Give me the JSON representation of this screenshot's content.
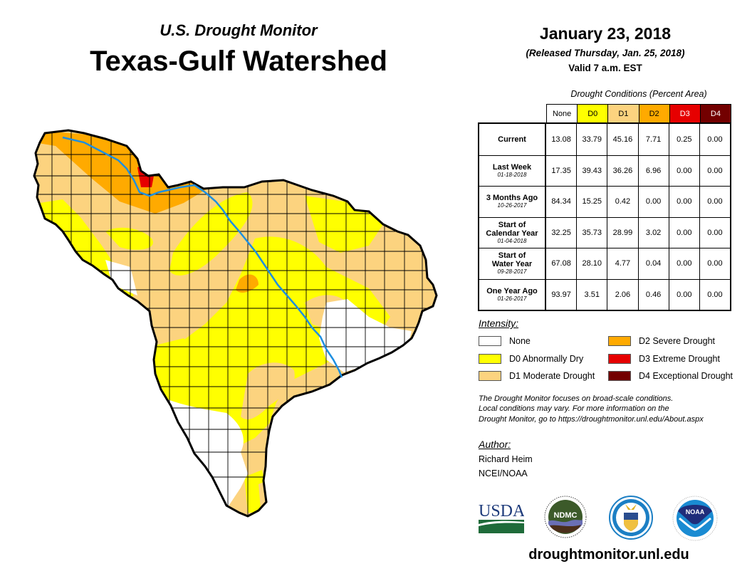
{
  "header": {
    "subtitle": "U.S. Drought Monitor",
    "title": "Texas-Gulf Watershed",
    "date": "January 23, 2018",
    "released": "(Released Thursday, Jan. 25, 2018)",
    "valid": "Valid 7 a.m. EST"
  },
  "table": {
    "caption": "Drought Conditions (Percent Area)",
    "columns": [
      {
        "label": "None",
        "color": "#ffffff",
        "text_color": "#000000"
      },
      {
        "label": "D0",
        "color": "#ffff00",
        "text_color": "#000000"
      },
      {
        "label": "D1",
        "color": "#fcd37f",
        "text_color": "#000000"
      },
      {
        "label": "D2",
        "color": "#ffaa00",
        "text_color": "#000000"
      },
      {
        "label": "D3",
        "color": "#e60000",
        "text_color": "#ffffff"
      },
      {
        "label": "D4",
        "color": "#730000",
        "text_color": "#ffffff"
      }
    ],
    "rows": [
      {
        "label": "Current",
        "label2": "",
        "date": "",
        "values": [
          "13.08",
          "33.79",
          "45.16",
          "7.71",
          "0.25",
          "0.00"
        ]
      },
      {
        "label": "Last Week",
        "label2": "",
        "date": "01-18-2018",
        "values": [
          "17.35",
          "39.43",
          "36.26",
          "6.96",
          "0.00",
          "0.00"
        ]
      },
      {
        "label": "3 Months Ago",
        "label2": "",
        "date": "10-26-2017",
        "values": [
          "84.34",
          "15.25",
          "0.42",
          "0.00",
          "0.00",
          "0.00"
        ]
      },
      {
        "label": "Start of",
        "label2": "Calendar Year",
        "date": "01-04-2018",
        "values": [
          "32.25",
          "35.73",
          "28.99",
          "3.02",
          "0.00",
          "0.00"
        ]
      },
      {
        "label": "Start of",
        "label2": "Water Year",
        "date": "09-28-2017",
        "values": [
          "67.08",
          "28.10",
          "4.77",
          "0.04",
          "0.00",
          "0.00"
        ]
      },
      {
        "label": "One Year Ago",
        "label2": "",
        "date": "01-26-2017",
        "values": [
          "93.97",
          "3.51",
          "2.06",
          "0.46",
          "0.00",
          "0.00"
        ]
      }
    ]
  },
  "legend": {
    "title": "Intensity:",
    "items": [
      {
        "label": "None",
        "color": "#ffffff"
      },
      {
        "label": "D0 Abnormally Dry",
        "color": "#ffff00"
      },
      {
        "label": "D1 Moderate Drought",
        "color": "#fcd37f"
      },
      {
        "label": "D2 Severe Drought",
        "color": "#ffaa00"
      },
      {
        "label": "D3 Extreme Drought",
        "color": "#e60000"
      },
      {
        "label": "D4 Exceptional Drought",
        "color": "#730000"
      }
    ]
  },
  "note": {
    "lines": [
      "The Drought Monitor focuses on broad-scale conditions.",
      "Local conditions may vary. For more information on the",
      "Drought Monitor, go to https://droughtmonitor.unl.edu/About.aspx"
    ]
  },
  "author": {
    "title": "Author:",
    "name": "Richard Heim",
    "org": "NCEI/NOAA"
  },
  "logos": {
    "usda": "USDA",
    "ndmc": "NDMC",
    "noaa": "NOAA"
  },
  "map": {
    "river_color": "#1e8fe0",
    "boundary_color": "#000000"
  },
  "footer": {
    "website": "droughtmonitor.unl.edu"
  }
}
